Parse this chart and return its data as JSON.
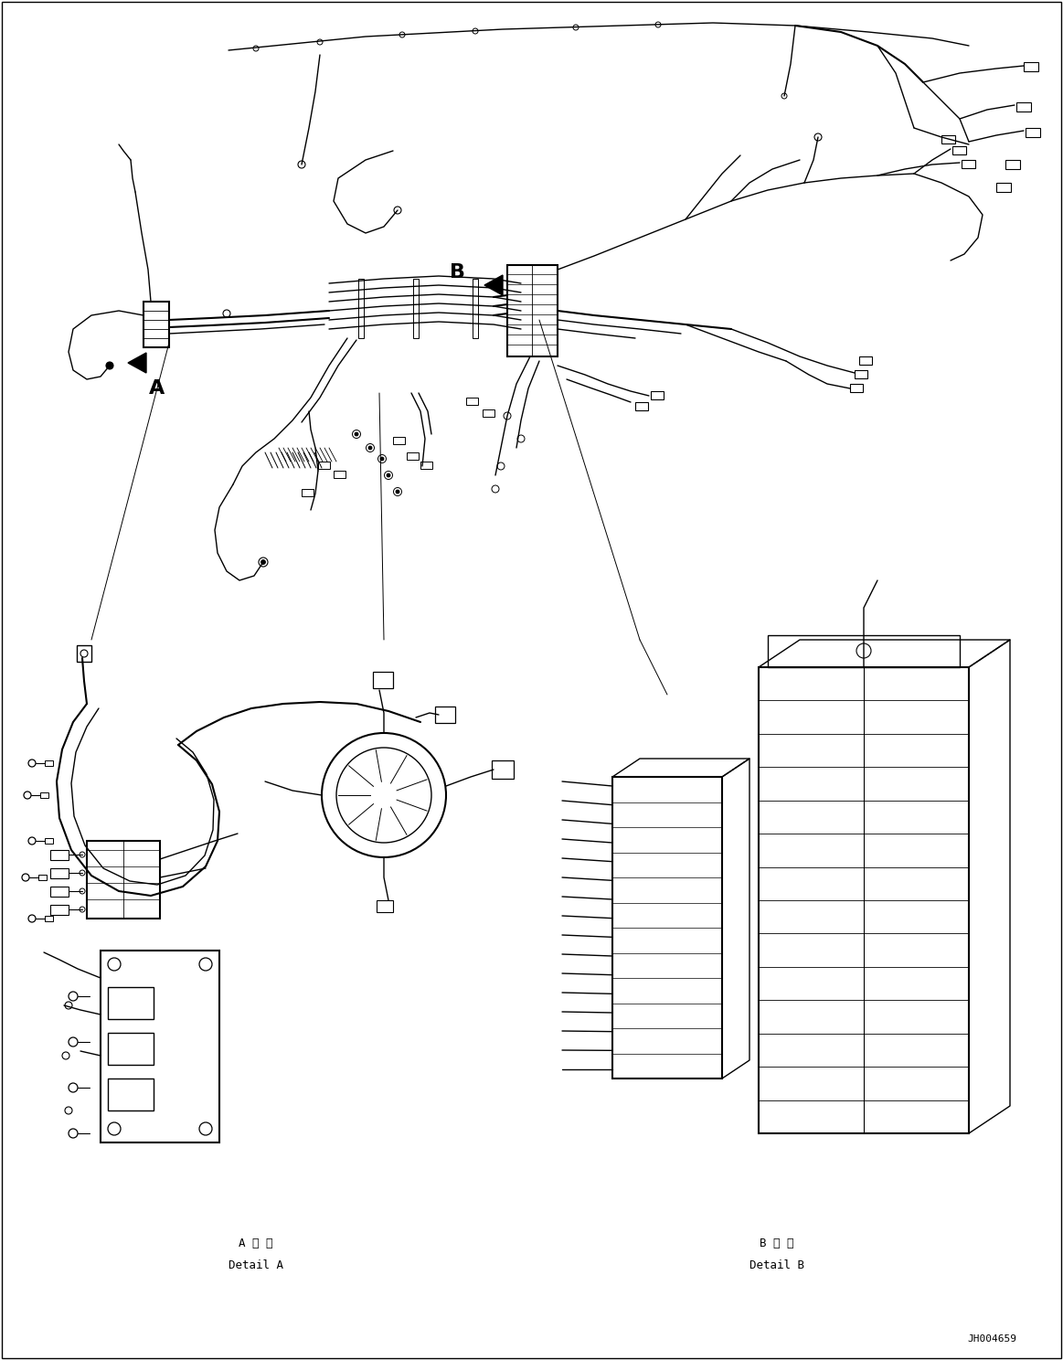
{
  "background_color": "#ffffff",
  "line_color": "#000000",
  "figure_width": 11.63,
  "figure_height": 14.88,
  "dpi": 100,
  "label_A": "A",
  "label_B": "B",
  "label_detail_A_ja": "A 詳 細",
  "label_detail_A_en": "Detail A",
  "label_detail_B_ja": "B 詳 細",
  "label_detail_B_en": "Detail B",
  "part_number": "JH004659",
  "monospace_font": "DejaVu Sans Mono"
}
